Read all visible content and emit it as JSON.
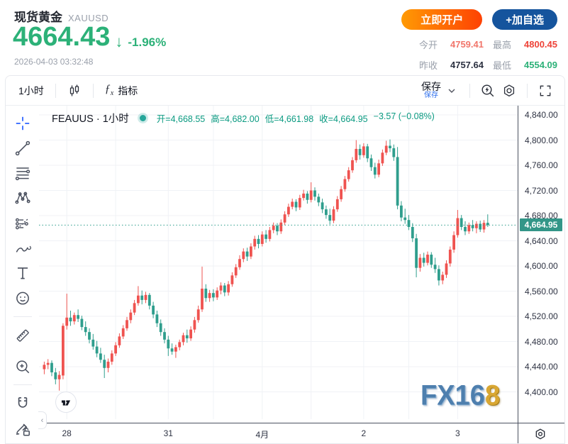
{
  "header": {
    "title": "现货黄金",
    "symbol": "XAUUSD",
    "price": "4664.43",
    "arrow": "↓",
    "change_pct": "-1.96%",
    "timestamp": "2026-04-03 03:32:48",
    "open_account_btn": "立即开户",
    "add_watchlist_btn": "+加自选",
    "stats": [
      {
        "label": "今开",
        "value": "4759.41",
        "color": "#f1766b"
      },
      {
        "label": "最高",
        "value": "4800.45",
        "color": "#ee4338"
      },
      {
        "label": "昨收",
        "value": "4757.64",
        "color": "#2b3040"
      },
      {
        "label": "最低",
        "value": "4554.09",
        "color": "#2cb178"
      }
    ],
    "colors": {
      "price_up_green": "#2cb178",
      "button_orange": "#fe4203",
      "button_navy": "#15549d"
    }
  },
  "toolbar": {
    "timeframe": "1小时",
    "indicator_label": "指标",
    "fx_glyph": "ƒ",
    "save_label": "保存",
    "save_badge": "保存",
    "icons": [
      "candles-style-icon",
      "chevron-down-icon",
      "flash-search-icon",
      "settings-icon",
      "fullscreen-icon"
    ]
  },
  "sidebar_tools": [
    "crosshair",
    "trend-line",
    "fib-retracement",
    "xabcd-pattern",
    "forecast",
    "brush",
    "text",
    "emoji",
    "ruler",
    "zoom-in",
    "magnet",
    "draw-lock"
  ],
  "legend": {
    "series_name": "FEAUUS · 1小时",
    "items": [
      "开=4,668.55",
      "高=4,682.00",
      "低=4,661.98",
      "收=4,664.95",
      "−3.57 (−0.08%)"
    ]
  },
  "watermark": {
    "blue_part": "FX16",
    "gold_part": "8"
  },
  "chart_data": {
    "type": "candlestick",
    "symbol": "FEAUUS",
    "interval": "1小时",
    "up_color": "#ef5350",
    "down_color": "#2f9e8d",
    "grid_color": "#f0f2f6",
    "current_price": {
      "value": 4664.95,
      "label": "4,664.95",
      "line_color": "#2f9e8d",
      "badge_color": "#339688"
    },
    "y_ticks": [
      {
        "value": 4840,
        "label": "4,840.00"
      },
      {
        "value": 4800,
        "label": "4,800.00"
      },
      {
        "value": 4760,
        "label": "4,760.00"
      },
      {
        "value": 4720,
        "label": "4,720.00"
      },
      {
        "value": 4680,
        "label": "4,680.00"
      },
      {
        "value": 4640,
        "label": "4,640.00"
      },
      {
        "value": 4600,
        "label": "4,600.00"
      },
      {
        "value": 4560,
        "label": "4,560.00"
      },
      {
        "value": 4520,
        "label": "4,520.00"
      },
      {
        "value": 4480,
        "label": "4,480.00"
      },
      {
        "value": 4440,
        "label": "4,440.00"
      },
      {
        "value": 4400,
        "label": "4,400.00"
      }
    ],
    "x_labels": [
      {
        "index": 6,
        "label": "28"
      },
      {
        "index": 33,
        "label": "31"
      },
      {
        "index": 58,
        "label": "4月"
      },
      {
        "index": 85,
        "label": "2"
      },
      {
        "index": 110,
        "label": "3"
      }
    ],
    "extra_vgrid_indices": [
      19,
      45,
      71,
      97
    ],
    "candles": [
      [
        4436,
        4448,
        4428,
        4443
      ],
      [
        4443,
        4452,
        4436,
        4446
      ],
      [
        4446,
        4450,
        4425,
        4431
      ],
      [
        4431,
        4438,
        4412,
        4420
      ],
      [
        4420,
        4433,
        4402,
        4427
      ],
      [
        4426,
        4509,
        4420,
        4505
      ],
      [
        4505,
        4556,
        4499,
        4518
      ],
      [
        4518,
        4529,
        4505,
        4512
      ],
      [
        4512,
        4526,
        4507,
        4522
      ],
      [
        4522,
        4531,
        4511,
        4516
      ],
      [
        4516,
        4521,
        4498,
        4503
      ],
      [
        4503,
        4512,
        4489,
        4495
      ],
      [
        4495,
        4501,
        4477,
        4483
      ],
      [
        4483,
        4492,
        4467,
        4472
      ],
      [
        4472,
        4481,
        4455,
        4461
      ],
      [
        4461,
        4470,
        4446,
        4451
      ],
      [
        4451,
        4459,
        4422,
        4438
      ],
      [
        4438,
        4453,
        4431,
        4448
      ],
      [
        4448,
        4466,
        4443,
        4461
      ],
      [
        4461,
        4479,
        4457,
        4474
      ],
      [
        4474,
        4493,
        4470,
        4488
      ],
      [
        4488,
        4506,
        4484,
        4501
      ],
      [
        4501,
        4519,
        4497,
        4514
      ],
      [
        4514,
        4531,
        4509,
        4526
      ],
      [
        4526,
        4546,
        4522,
        4541
      ],
      [
        4541,
        4568,
        4537,
        4553
      ],
      [
        4553,
        4561,
        4539,
        4546
      ],
      [
        4546,
        4559,
        4541,
        4554
      ],
      [
        4554,
        4557,
        4531,
        4537
      ],
      [
        4537,
        4543,
        4517,
        4523
      ],
      [
        4523,
        4529,
        4503,
        4509
      ],
      [
        4509,
        4515,
        4489,
        4495
      ],
      [
        4495,
        4501,
        4477,
        4483
      ],
      [
        4483,
        4489,
        4457,
        4469
      ],
      [
        4469,
        4477,
        4459,
        4464
      ],
      [
        4464,
        4475,
        4454,
        4471
      ],
      [
        4471,
        4483,
        4466,
        4479
      ],
      [
        4479,
        4494,
        4474,
        4490
      ],
      [
        4490,
        4499,
        4478,
        4485
      ],
      [
        4485,
        4504,
        4481,
        4499
      ],
      [
        4499,
        4519,
        4494,
        4514
      ],
      [
        4514,
        4537,
        4510,
        4531
      ],
      [
        4531,
        4599,
        4527,
        4564
      ],
      [
        4564,
        4571,
        4543,
        4549
      ],
      [
        4549,
        4562,
        4543,
        4557
      ],
      [
        4557,
        4563,
        4544,
        4550
      ],
      [
        4550,
        4566,
        4546,
        4561
      ],
      [
        4561,
        4574,
        4555,
        4569
      ],
      [
        4569,
        4573,
        4552,
        4558
      ],
      [
        4558,
        4576,
        4553,
        4571
      ],
      [
        4571,
        4590,
        4567,
        4585
      ],
      [
        4585,
        4603,
        4581,
        4598
      ],
      [
        4598,
        4617,
        4594,
        4611
      ],
      [
        4611,
        4628,
        4606,
        4623
      ],
      [
        4623,
        4629,
        4608,
        4615
      ],
      [
        4615,
        4636,
        4611,
        4631
      ],
      [
        4631,
        4648,
        4626,
        4643
      ],
      [
        4643,
        4649,
        4628,
        4635
      ],
      [
        4635,
        4655,
        4631,
        4650
      ],
      [
        4650,
        4657,
        4637,
        4643
      ],
      [
        4643,
        4662,
        4639,
        4657
      ],
      [
        4657,
        4669,
        4652,
        4664
      ],
      [
        4664,
        4668,
        4649,
        4655
      ],
      [
        4655,
        4674,
        4651,
        4669
      ],
      [
        4669,
        4687,
        4665,
        4682
      ],
      [
        4682,
        4699,
        4678,
        4694
      ],
      [
        4694,
        4707,
        4690,
        4702
      ],
      [
        4702,
        4706,
        4687,
        4693
      ],
      [
        4693,
        4713,
        4689,
        4708
      ],
      [
        4708,
        4721,
        4704,
        4715
      ],
      [
        4715,
        4719,
        4699,
        4705
      ],
      [
        4705,
        4733,
        4701,
        4720
      ],
      [
        4720,
        4725,
        4704,
        4710
      ],
      [
        4710,
        4715,
        4695,
        4701
      ],
      [
        4701,
        4707,
        4684,
        4690
      ],
      [
        4690,
        4696,
        4675,
        4681
      ],
      [
        4681,
        4691,
        4666,
        4672
      ],
      [
        4672,
        4695,
        4668,
        4690
      ],
      [
        4690,
        4711,
        4686,
        4706
      ],
      [
        4706,
        4727,
        4702,
        4722
      ],
      [
        4722,
        4743,
        4718,
        4738
      ],
      [
        4738,
        4757,
        4734,
        4752
      ],
      [
        4752,
        4773,
        4748,
        4768
      ],
      [
        4768,
        4800,
        4764,
        4786
      ],
      [
        4786,
        4793,
        4769,
        4776
      ],
      [
        4776,
        4795,
        4772,
        4790
      ],
      [
        4790,
        4794,
        4765,
        4771
      ],
      [
        4771,
        4777,
        4751,
        4757
      ],
      [
        4757,
        4764,
        4739,
        4745
      ],
      [
        4745,
        4769,
        4741,
        4763
      ],
      [
        4763,
        4785,
        4759,
        4780
      ],
      [
        4780,
        4799,
        4776,
        4791
      ],
      [
        4791,
        4801,
        4781,
        4787
      ],
      [
        4787,
        4793,
        4767,
        4773
      ],
      [
        4773,
        4789,
        4690,
        4696
      ],
      [
        4696,
        4703,
        4671,
        4677
      ],
      [
        4677,
        4691,
        4667,
        4673
      ],
      [
        4673,
        4681,
        4657,
        4662
      ],
      [
        4662,
        4668,
        4638,
        4644
      ],
      [
        4644,
        4651,
        4582,
        4597
      ],
      [
        4597,
        4619,
        4591,
        4613
      ],
      [
        4613,
        4621,
        4599,
        4605
      ],
      [
        4605,
        4623,
        4601,
        4618
      ],
      [
        4618,
        4622,
        4597,
        4602
      ],
      [
        4602,
        4613,
        4589,
        4595
      ],
      [
        4595,
        4601,
        4569,
        4577
      ],
      [
        4577,
        4591,
        4571,
        4586
      ],
      [
        4586,
        4609,
        4581,
        4604
      ],
      [
        4604,
        4631,
        4599,
        4626
      ],
      [
        4626,
        4655,
        4621,
        4649
      ],
      [
        4649,
        4689,
        4645,
        4676
      ],
      [
        4676,
        4681,
        4657,
        4662
      ],
      [
        4662,
        4671,
        4649,
        4655
      ],
      [
        4655,
        4669,
        4651,
        4665
      ],
      [
        4665,
        4673,
        4655,
        4660
      ],
      [
        4660,
        4671,
        4652,
        4667
      ],
      [
        4667,
        4672,
        4654,
        4658
      ],
      [
        4658,
        4673,
        4653,
        4668.52
      ],
      [
        4668.55,
        4682,
        4661.98,
        4664.95
      ]
    ]
  }
}
